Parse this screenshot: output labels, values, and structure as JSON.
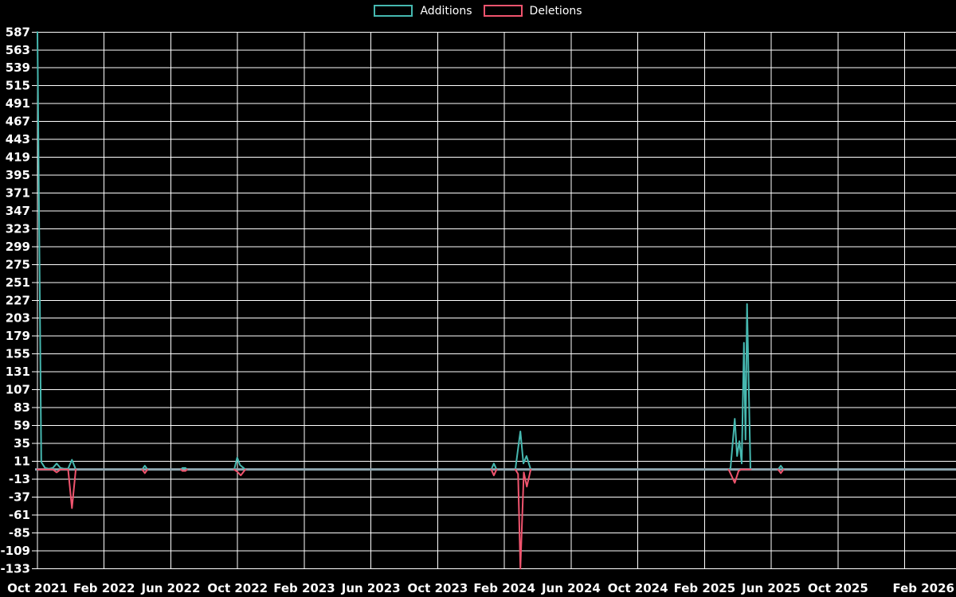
{
  "window": {
    "background": "#000000"
  },
  "colors": {
    "additions": "#46b8b0",
    "deletions": "#f0546e",
    "zero_line": "#8fa8b2",
    "grid": "#ffffff",
    "text": "#ffffff",
    "background": "#000000"
  },
  "legend": {
    "items": [
      {
        "label": "Additions",
        "color_key": "additions"
      },
      {
        "label": "Deletions",
        "color_key": "deletions"
      }
    ]
  },
  "chart_data": {
    "type": "line",
    "title": "",
    "grid": true,
    "legend_position": "top-center",
    "zero_line": true,
    "x_axis": {
      "unit": "weeks since first tick",
      "tick_interval_months": 4,
      "weeks_per_tick": 17.393,
      "tick_labels": [
        "Oct 2021",
        "Feb 2022",
        "Jun 2022",
        "Oct 2022",
        "Feb 2023",
        "Jun 2023",
        "Oct 2023",
        "Feb 2024",
        "Jun 2024",
        "Oct 2024",
        "Feb 2025",
        "Jun 2025",
        "Oct 2025",
        "Feb 2026"
      ]
    },
    "y_axis": {
      "min": -133,
      "max": 587,
      "tick_step": 24,
      "tick_labels": [
        587,
        563,
        539,
        515,
        491,
        467,
        443,
        419,
        395,
        371,
        347,
        323,
        299,
        275,
        251,
        227,
        203,
        179,
        155,
        131,
        107,
        83,
        59,
        35,
        11,
        -13,
        -37,
        -61,
        -85,
        -109,
        -133
      ]
    },
    "series": [
      {
        "name": "Additions",
        "color_key": "additions",
        "max_value": 587,
        "segments": [
          [
            [
              0,
              587
            ],
            [
              1,
              10
            ],
            [
              2,
              2
            ],
            [
              3,
              1
            ],
            [
              4,
              2
            ],
            [
              5,
              8
            ],
            [
              6,
              2
            ],
            [
              7,
              1
            ],
            [
              8,
              1
            ],
            [
              9,
              13
            ],
            [
              10,
              0
            ]
          ],
          [
            [
              27.3,
              0
            ],
            [
              28,
              5
            ],
            [
              28.7,
              0
            ]
          ],
          [
            [
              37.4,
              0
            ],
            [
              37.8,
              2
            ],
            [
              38.6,
              2
            ],
            [
              39,
              0
            ]
          ],
          [
            [
              51.3,
              0
            ],
            [
              52.1,
              16
            ],
            [
              52.8,
              6
            ],
            [
              54.2,
              0
            ]
          ],
          [
            [
              118.3,
              0
            ],
            [
              119,
              8
            ],
            [
              119.7,
              0
            ]
          ],
          [
            [
              124.6,
              0
            ],
            [
              125.3,
              28
            ],
            [
              125.9,
              51
            ],
            [
              126.7,
              8
            ],
            [
              127.5,
              18
            ],
            [
              128.6,
              0
            ]
          ],
          [
            [
              180.2,
              0
            ],
            [
              180.7,
              2
            ],
            [
              181.8,
              68
            ],
            [
              182.4,
              18
            ],
            [
              183,
              38
            ],
            [
              183.6,
              8
            ],
            [
              184.2,
              170
            ],
            [
              184.6,
              40
            ],
            [
              185,
              222
            ],
            [
              185.9,
              0
            ]
          ],
          [
            [
              193.1,
              0
            ],
            [
              193.8,
              5
            ],
            [
              194.5,
              0
            ]
          ]
        ]
      },
      {
        "name": "Deletions",
        "color_key": "deletions",
        "min_value": -133,
        "segments": [
          [
            [
              0,
              0
            ],
            [
              4,
              0
            ],
            [
              5,
              -4
            ],
            [
              6,
              0
            ],
            [
              8,
              0
            ],
            [
              9,
              -52
            ],
            [
              10,
              0
            ]
          ],
          [
            [
              27.3,
              0
            ],
            [
              28,
              -5
            ],
            [
              28.7,
              0
            ]
          ],
          [
            [
              37.4,
              0
            ],
            [
              37.8,
              -2
            ],
            [
              38.6,
              -2
            ],
            [
              39,
              0
            ]
          ],
          [
            [
              51.3,
              0
            ],
            [
              52.1,
              -3
            ],
            [
              53,
              -8
            ],
            [
              54.2,
              0
            ]
          ],
          [
            [
              118.3,
              0
            ],
            [
              119,
              -8
            ],
            [
              119.7,
              0
            ]
          ],
          [
            [
              124.6,
              0
            ],
            [
              125.3,
              -6
            ],
            [
              125.9,
              -133
            ],
            [
              126.8,
              -4
            ],
            [
              127.6,
              -23
            ],
            [
              128.6,
              0
            ]
          ],
          [
            [
              180.2,
              0
            ],
            [
              181.8,
              -18
            ],
            [
              182.8,
              -2
            ],
            [
              183.5,
              0
            ],
            [
              186,
              0
            ]
          ],
          [
            [
              193.1,
              0
            ],
            [
              193.8,
              -5
            ],
            [
              194.5,
              0
            ]
          ]
        ]
      }
    ]
  }
}
